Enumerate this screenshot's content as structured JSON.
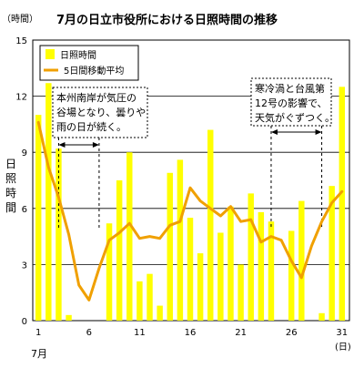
{
  "chart_data": {
    "type": "bar",
    "title": "7月の日立市役所における日照時間の推移",
    "yunit": "（時間）",
    "ylabel": "日照時間",
    "xunit": "(日)",
    "month_label": "7月",
    "ylim": [
      0,
      15
    ],
    "yticks": [
      0,
      3,
      6,
      9,
      12,
      15
    ],
    "xlim": [
      1,
      31
    ],
    "xticks": [
      1,
      6,
      11,
      16,
      21,
      26,
      31
    ],
    "grid": true,
    "legend_position": "top-left",
    "x": [
      1,
      2,
      3,
      4,
      5,
      6,
      7,
      8,
      9,
      10,
      11,
      12,
      13,
      14,
      15,
      16,
      17,
      18,
      19,
      20,
      21,
      22,
      23,
      24,
      25,
      26,
      27,
      28,
      29,
      30,
      31
    ],
    "series": [
      {
        "name": "日照時間",
        "type": "bar",
        "color": "#ffff00",
        "values": [
          11.0,
          12.7,
          9.2,
          0.3,
          0.0,
          0.0,
          0.0,
          5.2,
          7.5,
          9.0,
          2.1,
          2.5,
          0.8,
          7.9,
          8.6,
          5.5,
          3.6,
          10.2,
          4.7,
          6.1,
          3.0,
          6.8,
          5.8,
          5.3,
          0.0,
          4.8,
          6.4,
          0.0,
          0.4,
          7.2,
          12.5
        ]
      },
      {
        "name": "5日間移動平均",
        "type": "line",
        "color": "#f0a000",
        "values": [
          10.6,
          8.2,
          6.6,
          4.6,
          1.9,
          1.1,
          2.8,
          4.3,
          4.7,
          5.2,
          4.4,
          4.5,
          4.4,
          5.1,
          5.3,
          7.1,
          6.4,
          6.0,
          5.6,
          6.1,
          5.3,
          5.4,
          4.2,
          4.5,
          4.3,
          3.2,
          2.3,
          4.0,
          5.3,
          6.3,
          6.9
        ]
      }
    ],
    "annotations": [
      {
        "text": "本州南岸が気圧の谷場となり、曇りや雨の日が続く。",
        "lines": [
          "本州南岸が気圧の",
          "谷場となり、曇りや",
          "雨の日が続く。"
        ],
        "from": 3,
        "to": 7
      },
      {
        "text": "寒冷渦と台風第12号の影響で、天気がぐずつく。",
        "lines": [
          "寒冷渦と台風第",
          "12号の影響で、",
          "天気がぐずつく。"
        ],
        "from": 24,
        "to": 29
      }
    ]
  }
}
